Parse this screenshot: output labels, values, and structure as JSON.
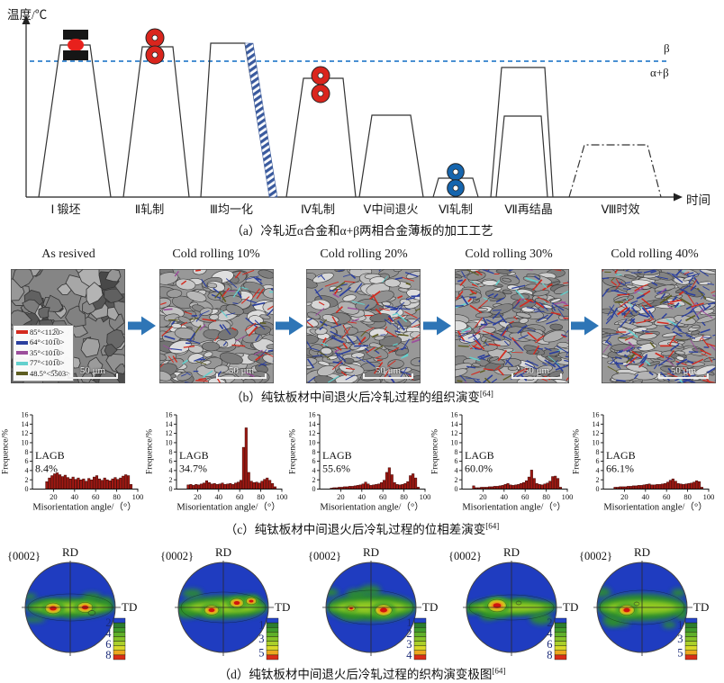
{
  "panel_a": {
    "y_axis_label": "温度/℃",
    "x_axis_label": "时间",
    "phase_labels": {
      "beta": "β",
      "alpha_beta": "α+β"
    },
    "stages": [
      {
        "label": "Ⅰ 锻坯"
      },
      {
        "label": "Ⅱ轧制"
      },
      {
        "label": "Ⅲ均一化"
      },
      {
        "label": "Ⅳ轧制"
      },
      {
        "label": "Ⅴ中间退火"
      },
      {
        "label": "Ⅵ轧制"
      },
      {
        "label": "Ⅶ再结晶"
      },
      {
        "label": "Ⅷ时效"
      }
    ],
    "colors": {
      "transus_line": "#4a90d2",
      "roll_red": "#da251d",
      "roll_blue": "#1565ae",
      "press_black": "#161616",
      "press_red": "#e8201c",
      "hatch_blue": "#3a5a9e"
    },
    "caption": "（a）冷轧近α合金和α+β两相合金薄板的加工工艺"
  },
  "panel_b": {
    "columns": [
      "As resived",
      "Cold rolling 10%",
      "Cold rolling 20%",
      "Cold rolling 30%",
      "Cold rolling 40%"
    ],
    "scale_bar_label": "50 μm",
    "arrow_color": "#2e75b6",
    "legend": [
      {
        "color": "#d42a1e",
        "label": "85°<112̅0>"
      },
      {
        "color": "#2b3f9e",
        "label": "64°<101̅0>"
      },
      {
        "color": "#9c4f9c",
        "label": "35°<101̅0>"
      },
      {
        "color": "#63d0cd",
        "label": "77°<101̅0>"
      },
      {
        "color": "#5d5d21",
        "label": "48.5°<5̅503>"
      }
    ],
    "caption": "（b）纯钛板材中间退火后冷轧过程的组织演变",
    "caption_ref": "[64]"
  },
  "panel_c": {
    "ylabel": "Frequence/%",
    "xlabel": "Misorientation angle/（°）",
    "lagb_label": "LAGB",
    "caption": "（c）纯钛板材中间退火后冷轧过程的位相差演变",
    "caption_ref": "[64]"
  },
  "chart_data": [
    {
      "type": "bar",
      "xlabel": "Misorientation angle/（°）",
      "ylabel": "Frequence/%",
      "xlim": [
        0,
        100
      ],
      "ylim": [
        0,
        16
      ],
      "x_ticks": [
        20,
        40,
        60,
        80,
        100
      ],
      "y_ticks": [
        0,
        2,
        4,
        6,
        8,
        10,
        12,
        14,
        16
      ],
      "x_start": 10,
      "bin_width": 2.5,
      "bar_color": "#a01812",
      "lagb": "8.4%",
      "values": [
        0,
        1.6,
        2.4,
        2.9,
        3.3,
        3.5,
        3.1,
        2.7,
        3.0,
        2.5,
        2.2,
        2.6,
        2.1,
        2.4,
        2.0,
        2.2,
        1.7,
        2.3,
        2.0,
        2.6,
        2.9,
        2.2,
        1.9,
        2.4,
        2.0,
        1.8,
        2.2,
        2.5,
        2.1,
        2.4,
        2.8,
        3.1,
        2.9,
        1.0
      ]
    },
    {
      "type": "bar",
      "xlabel": "Misorientation angle/（°）",
      "ylabel": "Frequence/%",
      "xlim": [
        0,
        100
      ],
      "ylim": [
        0,
        16
      ],
      "x_ticks": [
        20,
        40,
        60,
        80,
        100
      ],
      "y_ticks": [
        0,
        2,
        4,
        6,
        8,
        10,
        12,
        14,
        16
      ],
      "x_start": 10,
      "bin_width": 2.5,
      "bar_color": "#a01812",
      "lagb": "34.7%",
      "values": [
        0.9,
        1.0,
        0.8,
        1.0,
        0.9,
        1.1,
        1.3,
        1.8,
        1.4,
        1.1,
        1.2,
        1.0,
        1.1,
        1.3,
        1.0,
        1.1,
        1.2,
        1.0,
        1.3,
        1.5,
        1.9,
        9.0,
        13.2,
        3.6,
        1.7,
        1.4,
        1.5,
        1.3,
        1.7,
        2.1,
        2.4,
        1.9,
        1.2,
        0.5
      ]
    },
    {
      "type": "bar",
      "xlabel": "Misorientation angle/（°）",
      "ylabel": "Frequence/%",
      "xlim": [
        0,
        100
      ],
      "ylim": [
        0,
        16
      ],
      "x_ticks": [
        20,
        40,
        60,
        80,
        100
      ],
      "y_ticks": [
        0,
        2,
        4,
        6,
        8,
        10,
        12,
        14,
        16
      ],
      "x_start": 10,
      "bin_width": 2.5,
      "bar_color": "#a01812",
      "lagb": "55.6%",
      "values": [
        0.2,
        0.3,
        0.3,
        0.4,
        0.4,
        0.5,
        0.5,
        0.6,
        0.6,
        0.7,
        0.8,
        0.9,
        1.1,
        1.5,
        1.1,
        0.8,
        0.9,
        1.0,
        1.1,
        1.4,
        1.9,
        3.6,
        4.6,
        3.1,
        1.4,
        1.0,
        0.9,
        1.0,
        1.2,
        1.6,
        2.9,
        3.3,
        2.4,
        0.4
      ]
    },
    {
      "type": "bar",
      "xlabel": "Misorientation angle/（°）",
      "ylabel": "Frequence/%",
      "xlim": [
        0,
        100
      ],
      "ylim": [
        0,
        16
      ],
      "x_ticks": [
        20,
        40,
        60,
        80,
        100
      ],
      "y_ticks": [
        0,
        2,
        4,
        6,
        8,
        10,
        12,
        14,
        16
      ],
      "x_start": 10,
      "bin_width": 2.5,
      "bar_color": "#a01812",
      "lagb": "60.0%",
      "values": [
        0.7,
        0.3,
        0.3,
        0.4,
        0.4,
        0.4,
        0.5,
        0.5,
        0.6,
        0.6,
        0.7,
        0.8,
        1.0,
        1.2,
        0.9,
        0.8,
        0.9,
        1.0,
        1.2,
        1.4,
        1.8,
        2.6,
        4.1,
        2.3,
        1.2,
        1.0,
        0.9,
        1.1,
        1.3,
        1.7,
        2.7,
        2.8,
        2.3,
        0.4
      ]
    },
    {
      "type": "bar",
      "xlabel": "Misorientation angle/（°）",
      "ylabel": "Frequence/%",
      "xlim": [
        0,
        100
      ],
      "ylim": [
        0,
        16
      ],
      "x_ticks": [
        20,
        40,
        60,
        80,
        100
      ],
      "y_ticks": [
        0,
        2,
        4,
        6,
        8,
        10,
        12,
        14,
        16
      ],
      "x_start": 10,
      "bin_width": 2.5,
      "bar_color": "#a01812",
      "lagb": "66.1%",
      "values": [
        0.4,
        0.4,
        0.5,
        0.5,
        0.5,
        0.6,
        0.6,
        0.7,
        0.7,
        0.8,
        0.8,
        0.9,
        1.0,
        1.1,
        0.9,
        0.9,
        1.0,
        1.0,
        1.1,
        1.2,
        1.5,
        1.9,
        2.2,
        1.7,
        1.2,
        1.1,
        1.0,
        1.1,
        1.2,
        1.3,
        1.5,
        1.8,
        1.6,
        0.4
      ]
    }
  ],
  "panel_d": {
    "plane_label": "{0002}",
    "rd_label": "RD",
    "td_label": "TD",
    "colorbars": [
      [
        2,
        4,
        6,
        8
      ],
      [
        1,
        3,
        5
      ],
      [
        1,
        2,
        3,
        4
      ],
      [
        2,
        4,
        6,
        8
      ],
      [
        1,
        3,
        5
      ]
    ],
    "colorbar_colors": [
      "#2444c8",
      "#2d7c2f",
      "#3f992c",
      "#5fb02a",
      "#84c128",
      "#abd02a",
      "#d8d829",
      "#eca81f",
      "#d92d18"
    ],
    "base_color": "#1f3cc0",
    "band_color": "#2e9226",
    "caption": "（d）纯钛板材中间退火后冷轧过程的织构演变极图",
    "caption_ref": "[64]"
  }
}
